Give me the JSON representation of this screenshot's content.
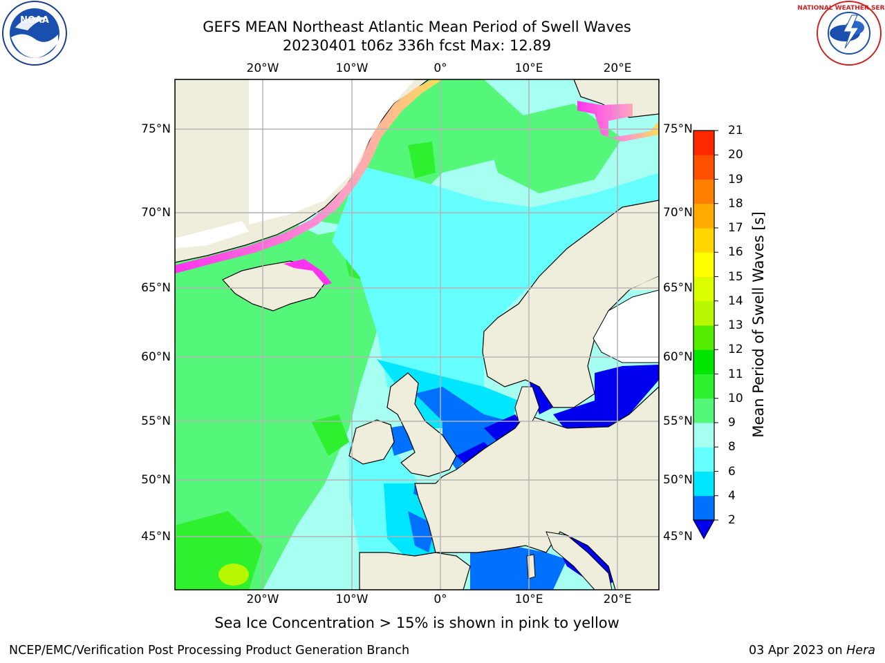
{
  "title": {
    "line1": "GEFS MEAN Northeast Atlantic Mean Period of Swell Waves",
    "line2": "20230401 t06z 336h fcst   Max: 12.89"
  },
  "map": {
    "lon_labels": [
      "20°W",
      "10°W",
      "0°",
      "10°E",
      "20°E"
    ],
    "lat_labels": [
      "75°N",
      "70°N",
      "65°N",
      "60°N",
      "55°N",
      "50°N",
      "45°N"
    ],
    "colors": {
      "land": "#efeedc",
      "grid": "#b3b3b3",
      "coast": "#000000",
      "ice": "#ff33ee"
    }
  },
  "colorbar": {
    "title": "Mean Period of Swell Waves [s]",
    "ticks": [
      "2",
      "4",
      "6",
      "8",
      "9",
      "10",
      "11",
      "12",
      "13",
      "14",
      "15",
      "16",
      "17",
      "18",
      "19",
      "20",
      "21"
    ],
    "colors": [
      "#0070ff",
      "#00e6ff",
      "#66ffff",
      "#a6fff0",
      "#55f77a",
      "#2ef02e",
      "#00e600",
      "#55ee00",
      "#b7f700",
      "#dcff00",
      "#ffff00",
      "#ffd700",
      "#ffaa00",
      "#ff8000",
      "#ff5000",
      "#ff2800"
    ],
    "under_color": "#0000ee"
  },
  "caption": "Sea Ice Concentration > 15% is shown in pink to yellow",
  "footer": {
    "left": "NCEP/EMC/Verification Post Processing Product Generation Branch",
    "right_date": "03 Apr 2023 on ",
    "right_host": "Hera"
  },
  "logos": {
    "noaa_text": "NOAA",
    "nws_text": "NATIONAL WEATHER SERVICE"
  }
}
